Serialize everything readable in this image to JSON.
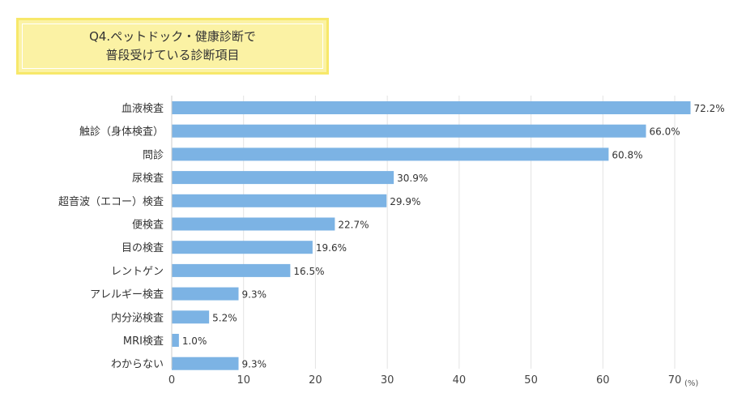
{
  "title": {
    "line1": "Q4.ペットドック・健康診断で",
    "line2": "普段受けている診断項目"
  },
  "chart_data": {
    "type": "bar",
    "orientation": "horizontal",
    "categories": [
      "血液検査",
      "触診（身体検査）",
      "問診",
      "尿検査",
      "超音波（エコー）検査",
      "便検査",
      "目の検査",
      "レントゲン",
      "アレルギー検査",
      "内分泌検査",
      "MRI検査",
      "わからない"
    ],
    "values": [
      72.2,
      66.0,
      60.8,
      30.9,
      29.9,
      22.7,
      19.6,
      16.5,
      9.3,
      5.2,
      1.0,
      9.3
    ],
    "value_labels": [
      "72.2%",
      "66.0%",
      "60.8%",
      "30.9%",
      "29.9%",
      "22.7%",
      "19.6%",
      "16.5%",
      "9.3%",
      "5.2%",
      "1.0%",
      "9.3%"
    ],
    "x_ticks": [
      0,
      10,
      20,
      30,
      40,
      50,
      60,
      70
    ],
    "xlim": [
      0,
      70
    ],
    "unit_label": "(%)",
    "grid": true,
    "bar_color": "#7cb3e4"
  }
}
